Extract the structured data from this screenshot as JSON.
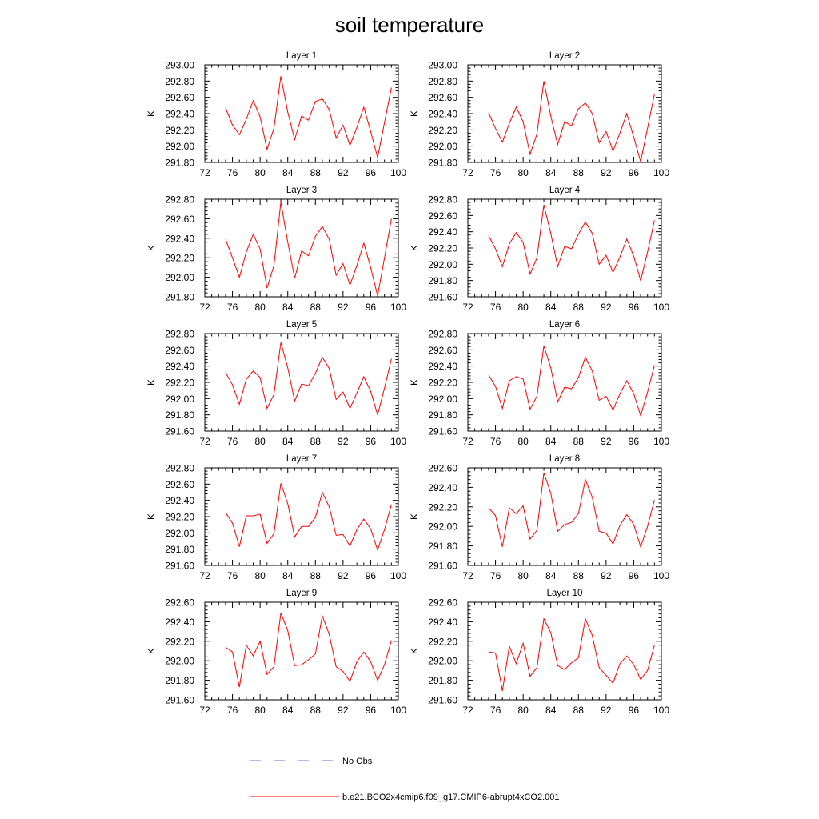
{
  "chart_data": {
    "type": "line",
    "title": "soil temperature",
    "ylabel": "K",
    "x": [
      75,
      76,
      77,
      78,
      79,
      80,
      81,
      82,
      83,
      84,
      85,
      86,
      87,
      88,
      89,
      90,
      91,
      92,
      93,
      94,
      95,
      96,
      97,
      98,
      99
    ],
    "xlim": [
      72,
      100
    ],
    "xticks": [
      "72",
      "76",
      "80",
      "84",
      "88",
      "92",
      "96",
      "100"
    ],
    "legend": [
      {
        "name": "No Obs",
        "color": "#6b6bd6",
        "style": "dashed"
      },
      {
        "name": "b.e21.BCO2x4cmip6.f09_g17.CMIP6-abrupt4xCO2.001",
        "color": "#ff0000",
        "style": "solid"
      }
    ],
    "panels": [
      {
        "title": "Layer 1",
        "ylim": [
          291.8,
          293.0
        ],
        "yticks": [
          "291.80",
          "292.00",
          "292.20",
          "292.40",
          "292.60",
          "292.80",
          "293.00"
        ],
        "values": [
          292.47,
          292.26,
          292.14,
          292.33,
          292.56,
          292.36,
          291.96,
          292.22,
          292.86,
          292.42,
          292.08,
          292.37,
          292.32,
          292.55,
          292.58,
          292.45,
          292.1,
          292.26,
          292.01,
          292.23,
          292.48,
          292.18,
          291.86,
          292.29,
          292.72
        ]
      },
      {
        "title": "Layer 2",
        "ylim": [
          291.8,
          293.0
        ],
        "yticks": [
          "291.80",
          "292.00",
          "292.20",
          "292.40",
          "292.60",
          "292.80",
          "293.00"
        ],
        "values": [
          292.41,
          292.22,
          292.05,
          292.28,
          292.48,
          292.3,
          291.9,
          292.15,
          292.8,
          292.37,
          292.02,
          292.3,
          292.25,
          292.46,
          292.53,
          292.4,
          292.04,
          292.18,
          291.94,
          292.16,
          292.4,
          292.11,
          291.81,
          292.22,
          292.64
        ]
      },
      {
        "title": "Layer 3",
        "ylim": [
          291.8,
          292.8
        ],
        "yticks": [
          "291.80",
          "292.00",
          "292.20",
          "292.40",
          "292.60",
          "292.80"
        ],
        "values": [
          292.39,
          292.2,
          292.0,
          292.26,
          292.44,
          292.29,
          291.89,
          292.12,
          292.77,
          292.36,
          291.99,
          292.27,
          292.22,
          292.42,
          292.52,
          292.39,
          292.02,
          292.14,
          291.92,
          292.12,
          292.35,
          292.1,
          291.81,
          292.2,
          292.6
        ]
      },
      {
        "title": "Layer 4",
        "ylim": [
          291.6,
          292.8
        ],
        "yticks": [
          "291.60",
          "291.80",
          "292.00",
          "292.20",
          "292.40",
          "292.60",
          "292.80"
        ],
        "values": [
          292.35,
          292.19,
          291.97,
          292.25,
          292.39,
          292.27,
          291.88,
          292.08,
          292.73,
          292.38,
          291.97,
          292.22,
          292.19,
          292.37,
          292.52,
          292.38,
          292.0,
          292.11,
          291.9,
          292.09,
          292.31,
          292.1,
          291.8,
          292.15,
          292.54
        ]
      },
      {
        "title": "Layer 5",
        "ylim": [
          291.6,
          292.8
        ],
        "yticks": [
          "291.60",
          "291.80",
          "292.00",
          "292.20",
          "292.40",
          "292.60",
          "292.80"
        ],
        "values": [
          292.32,
          292.17,
          291.93,
          292.24,
          292.34,
          292.26,
          291.88,
          292.05,
          292.69,
          292.38,
          291.97,
          292.18,
          292.16,
          292.31,
          292.51,
          292.37,
          291.99,
          292.08,
          291.88,
          292.07,
          292.27,
          292.09,
          291.8,
          292.13,
          292.49
        ]
      },
      {
        "title": "Layer 6",
        "ylim": [
          291.6,
          292.8
        ],
        "yticks": [
          "291.60",
          "291.80",
          "292.00",
          "292.20",
          "292.40",
          "292.60",
          "292.80"
        ],
        "values": [
          292.29,
          292.15,
          291.88,
          292.22,
          292.27,
          292.24,
          291.87,
          292.03,
          292.65,
          292.38,
          291.96,
          292.14,
          292.12,
          292.26,
          292.51,
          292.34,
          291.98,
          292.03,
          291.86,
          292.06,
          292.22,
          292.06,
          291.79,
          292.08,
          292.41
        ]
      },
      {
        "title": "Layer 7",
        "ylim": [
          291.6,
          292.8
        ],
        "yticks": [
          "291.60",
          "291.80",
          "292.00",
          "292.20",
          "292.40",
          "292.60",
          "292.80"
        ],
        "values": [
          292.25,
          292.12,
          291.83,
          292.21,
          292.21,
          292.23,
          291.87,
          291.99,
          292.61,
          292.36,
          291.95,
          292.08,
          292.08,
          292.19,
          292.5,
          292.32,
          291.97,
          291.98,
          291.84,
          292.04,
          292.17,
          292.05,
          291.79,
          292.04,
          292.35
        ]
      },
      {
        "title": "Layer 8",
        "ylim": [
          291.6,
          292.6
        ],
        "yticks": [
          "291.60",
          "291.80",
          "292.00",
          "292.20",
          "292.40",
          "292.60"
        ],
        "values": [
          292.19,
          292.11,
          291.79,
          292.19,
          292.13,
          292.21,
          291.87,
          291.96,
          292.55,
          292.34,
          291.95,
          292.02,
          292.04,
          292.13,
          292.48,
          292.3,
          291.95,
          291.93,
          291.82,
          292.01,
          292.12,
          292.02,
          291.79,
          292.0,
          292.27
        ]
      },
      {
        "title": "Layer 9",
        "ylim": [
          291.6,
          292.6
        ],
        "yticks": [
          "291.60",
          "291.80",
          "292.00",
          "292.20",
          "292.40",
          "292.60"
        ],
        "values": [
          292.14,
          292.09,
          291.73,
          292.16,
          292.05,
          292.2,
          291.86,
          291.94,
          292.49,
          292.31,
          291.95,
          291.96,
          292.01,
          292.07,
          292.46,
          292.27,
          291.94,
          291.89,
          291.79,
          291.99,
          292.09,
          291.99,
          291.8,
          291.96,
          292.21
        ]
      },
      {
        "title": "Layer 10",
        "ylim": [
          291.6,
          292.6
        ],
        "yticks": [
          "291.60",
          "291.80",
          "292.00",
          "292.20",
          "292.40",
          "292.60"
        ],
        "values": [
          292.09,
          292.08,
          291.69,
          292.15,
          291.97,
          292.18,
          291.84,
          291.93,
          292.43,
          292.29,
          291.95,
          291.91,
          291.98,
          292.03,
          292.43,
          292.26,
          291.93,
          291.85,
          291.77,
          291.97,
          292.05,
          291.96,
          291.81,
          291.9,
          292.16
        ]
      }
    ]
  }
}
